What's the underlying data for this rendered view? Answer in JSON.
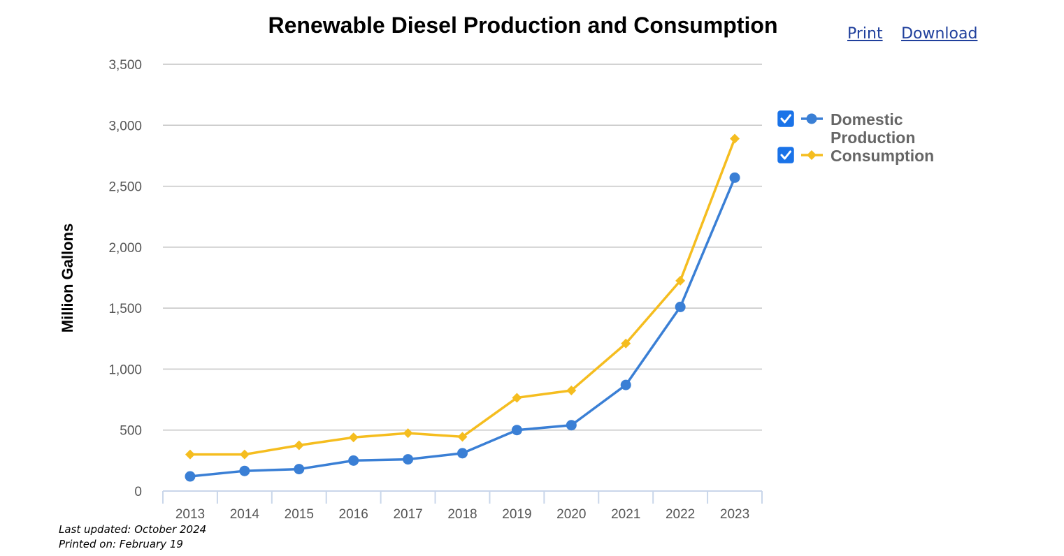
{
  "links": {
    "print_label": "Print",
    "download_label": "Download"
  },
  "footer": {
    "last_updated": "Last updated: October 2024",
    "printed_on": "Printed on: February 19"
  },
  "chart_data": {
    "type": "line",
    "title": "Renewable Diesel Production and Consumption",
    "xlabel": "",
    "ylabel": "Million Gallons",
    "ylim": [
      0,
      3500
    ],
    "yticks": [
      0,
      500,
      1000,
      1500,
      2000,
      2500,
      3000,
      3500
    ],
    "ytick_labels": [
      "0",
      "500",
      "1,000",
      "1,500",
      "2,000",
      "2,500",
      "3,000",
      "3,500"
    ],
    "categories": [
      "2013",
      "2014",
      "2015",
      "2016",
      "2017",
      "2018",
      "2019",
      "2020",
      "2021",
      "2022",
      "2023"
    ],
    "grid": true,
    "legend": "right",
    "series": [
      {
        "name": "Domestic Production",
        "legend_lines": [
          "Domestic",
          "Production"
        ],
        "color": "#3a7fd5",
        "marker": "circle",
        "checked": true,
        "values": [
          120,
          165,
          180,
          250,
          260,
          310,
          500,
          540,
          870,
          1510,
          2570
        ]
      },
      {
        "name": "Consumption",
        "legend_lines": [
          "Consumption"
        ],
        "color": "#f5bd1f",
        "marker": "diamond",
        "checked": true,
        "values": [
          300,
          300,
          375,
          440,
          475,
          445,
          765,
          825,
          1210,
          1725,
          2890
        ]
      }
    ]
  }
}
